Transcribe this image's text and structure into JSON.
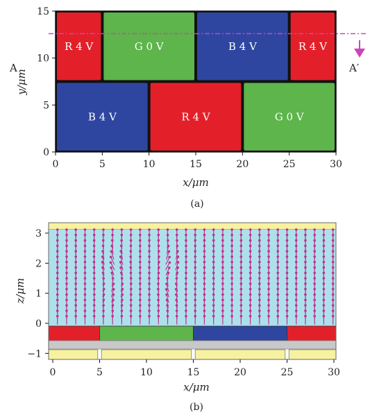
{
  "panel_a": {
    "caption": "(a)",
    "xlabel": "x/μm",
    "ylabel": "y/μm",
    "xlim": [
      0,
      30
    ],
    "ylim": [
      0,
      15
    ],
    "xticks": [
      "0",
      "5",
      "10",
      "15",
      "20",
      "25",
      "30"
    ],
    "yticks": [
      "0",
      "5",
      "10",
      "15"
    ],
    "marker_left": "A",
    "marker_right": "A′",
    "section_line_y": 12.6,
    "colors": {
      "R": "#e3202a",
      "G": "#5db54b",
      "B": "#2e46a0",
      "gap": "#111111",
      "cut_line": "#cc44bb"
    },
    "rows": [
      {
        "y0": 7.5,
        "y1": 15,
        "cells": [
          {
            "x0": 0,
            "x1": 5,
            "color": "R",
            "label": "R 4 V"
          },
          {
            "x0": 5,
            "x1": 15,
            "color": "G",
            "label": "G 0 V"
          },
          {
            "x0": 15,
            "x1": 25,
            "color": "B",
            "label": "B 4 V"
          },
          {
            "x0": 25,
            "x1": 30,
            "color": "R",
            "label": "R 4 V"
          }
        ]
      },
      {
        "y0": 0,
        "y1": 7.5,
        "cells": [
          {
            "x0": 0,
            "x1": 10,
            "color": "B",
            "label": "B 4 V"
          },
          {
            "x0": 10,
            "x1": 20,
            "color": "R",
            "label": "R 4 V"
          },
          {
            "x0": 20,
            "x1": 30,
            "color": "G",
            "label": "G 0 V"
          }
        ]
      }
    ]
  },
  "panel_b": {
    "caption": "(b)",
    "xlabel": "x/μm",
    "ylabel": "z/μm",
    "xlim": [
      0,
      30
    ],
    "ylim": [
      -1.2,
      3.3
    ],
    "xticks": [
      "0",
      "5",
      "10",
      "15",
      "20",
      "25",
      "30"
    ],
    "yticks": [
      "−1",
      "0",
      "1",
      "2",
      "3"
    ],
    "colors": {
      "lc": "#aee0ec",
      "top": "#f7f2a0",
      "bottom": "#f7f2a0",
      "gray": "#c8c8c8",
      "arrow": "#c0308c"
    },
    "electrodes": [
      {
        "x0": 0,
        "x1": 5,
        "color": "#e3202a"
      },
      {
        "x0": 5,
        "x1": 15,
        "color": "#5db54b"
      },
      {
        "x0": 15,
        "x1": 25,
        "color": "#2e46a0"
      },
      {
        "x0": 25,
        "x1": 30,
        "color": "#e3202a"
      }
    ],
    "bottom_blocks": [
      [
        0,
        4.8
      ],
      [
        5.2,
        14.8
      ],
      [
        15.2,
        24.8
      ],
      [
        25.2,
        30
      ]
    ]
  }
}
